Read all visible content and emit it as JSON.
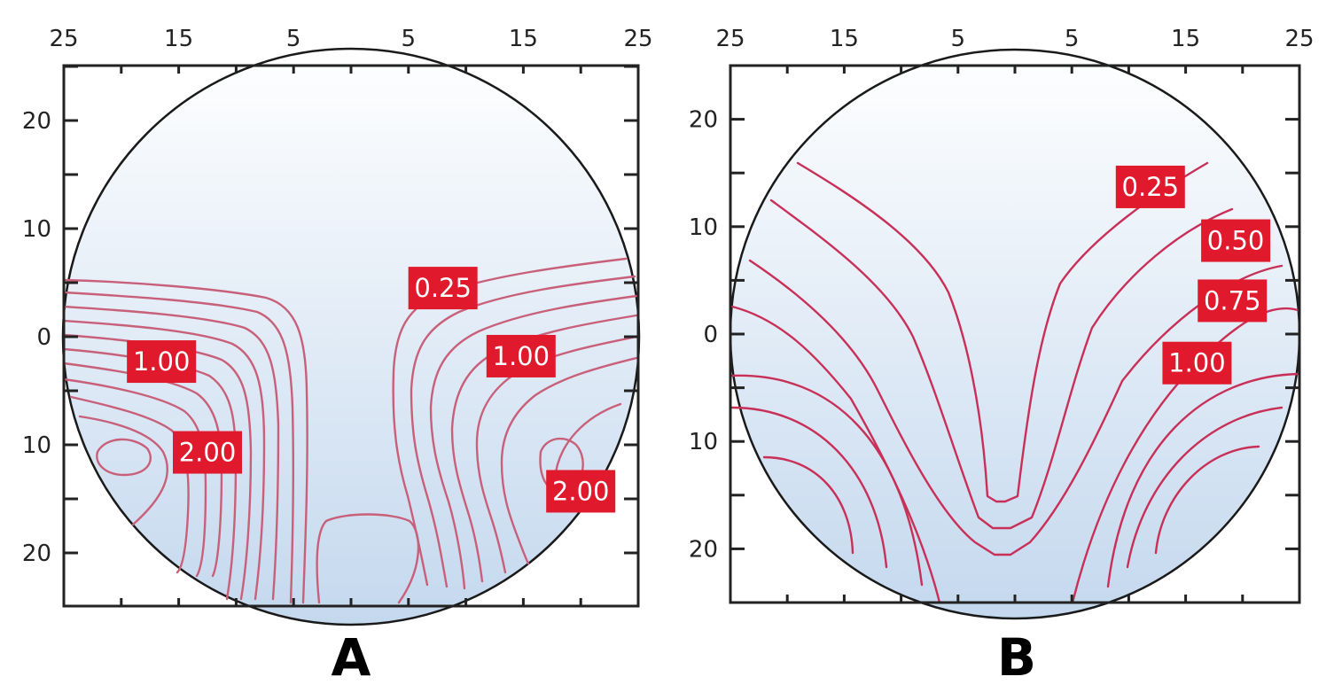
{
  "colors": {
    "contour_a": "#c8607a",
    "contour_b": "#c83058",
    "label_bg": "#e01a2c",
    "lens_top": "#ffffff",
    "lens_bottom": "#c4d8ee"
  },
  "chart_data": [
    {
      "type": "contour",
      "panel": "A",
      "x_tick_labels": [
        "25",
        "15",
        "5",
        "5",
        "15",
        "25"
      ],
      "y_tick_labels": [
        "20",
        "10",
        "0",
        "10",
        "20"
      ],
      "x_tick_values": [
        -25,
        -15,
        -5,
        5,
        15,
        25
      ],
      "y_tick_values": [
        20,
        10,
        0,
        -10,
        -20
      ],
      "xlim": [
        -25,
        25
      ],
      "ylim": [
        -25,
        25
      ],
      "contour_step": 0.25,
      "contour_labels": [
        {
          "text": "0.25",
          "x": 8,
          "y": 4.5
        },
        {
          "text": "1.00",
          "x": -16.5,
          "y": -2.3
        },
        {
          "text": "1.00",
          "x": 14.8,
          "y": -1.8
        },
        {
          "text": "2.00",
          "x": -12.5,
          "y": -10.7
        },
        {
          "text": "2.00",
          "x": 20,
          "y": -14.3
        }
      ]
    },
    {
      "type": "contour",
      "panel": "B",
      "x_tick_labels": [
        "25",
        "15",
        "5",
        "5",
        "15",
        "25"
      ],
      "y_tick_labels": [
        "20",
        "10",
        "0",
        "10",
        "20"
      ],
      "x_tick_values": [
        -25,
        -15,
        -5,
        5,
        15,
        25
      ],
      "y_tick_values": [
        20,
        10,
        0,
        -10,
        -20
      ],
      "xlim": [
        -25,
        25
      ],
      "ylim": [
        -25,
        25
      ],
      "contour_step": 0.25,
      "contour_labels": [
        {
          "text": "0.25",
          "x": 11.9,
          "y": 13.7
        },
        {
          "text": "0.50",
          "x": 19.4,
          "y": 8.7
        },
        {
          "text": "0.75",
          "x": 19.1,
          "y": 3.1
        },
        {
          "text": "1.00",
          "x": 16.0,
          "y": -2.7
        }
      ]
    }
  ]
}
